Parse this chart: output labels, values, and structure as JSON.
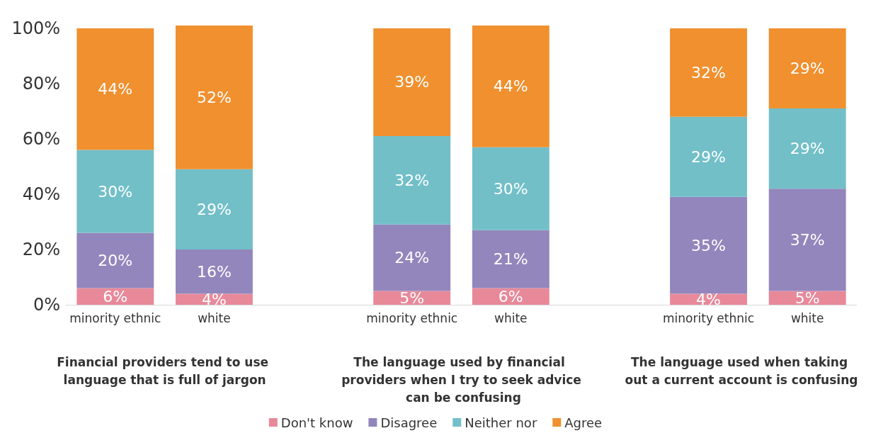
{
  "chart_data": {
    "type": "bar",
    "stacked": true,
    "grid": false,
    "legend": "bottom",
    "categories": [
      "minority ethnic",
      "white",
      null,
      "minority ethnic",
      "white",
      null,
      "minority ethnic",
      "white"
    ],
    "ylim": [
      0,
      101
    ],
    "yticks": [
      {
        "value": 0,
        "label": "0%"
      },
      {
        "value": 20,
        "label": "20%"
      },
      {
        "value": 40,
        "label": "40%"
      },
      {
        "value": 60,
        "label": "60%"
      },
      {
        "value": 80,
        "label": "80%"
      },
      {
        "value": 100,
        "label": "100%"
      }
    ],
    "series": [
      {
        "name": "Don't know",
        "color": "#e8899a",
        "values": [
          6,
          4,
          null,
          5,
          6,
          null,
          4,
          5
        ],
        "value_labels": [
          "6%",
          "4%",
          null,
          "5%",
          "6%",
          null,
          "4%",
          "5%"
        ]
      },
      {
        "name": "Disagree",
        "color": "#9386bc",
        "values": [
          20,
          16,
          null,
          24,
          21,
          null,
          35,
          37
        ],
        "value_labels": [
          "20%",
          "16%",
          null,
          "24%",
          "21%",
          null,
          "35%",
          "37%"
        ]
      },
      {
        "name": "Neither nor",
        "color": "#72bfc8",
        "values": [
          30,
          29,
          null,
          32,
          30,
          null,
          29,
          29
        ],
        "value_labels": [
          "30%",
          "29%",
          null,
          "32%",
          "30%",
          null,
          "29%",
          "29%"
        ]
      },
      {
        "name": "Agree",
        "color": "#f0902f",
        "values": [
          44,
          52,
          null,
          39,
          44,
          null,
          32,
          29
        ],
        "value_labels": [
          "44%",
          "52%",
          null,
          "39%",
          "44%",
          null,
          "32%",
          "29%"
        ]
      }
    ],
    "annotations": [
      "Financial providers tend to use language that is full of jargon",
      "The language used by financial providers when I try to seek advice can be confusing",
      "The language used when taking out a current account is confusing"
    ]
  }
}
